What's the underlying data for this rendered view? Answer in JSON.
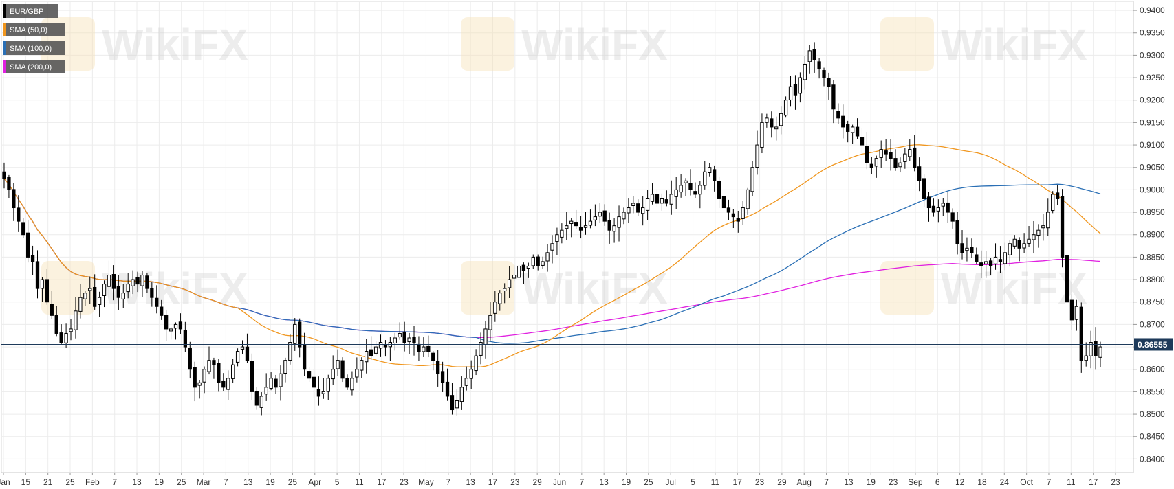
{
  "watermark": "WikiFX",
  "legend": [
    {
      "label": "EUR/GBP",
      "color": "#000000"
    },
    {
      "label": "SMA (50,0)",
      "color": "#f0961e"
    },
    {
      "label": "SMA (100,0)",
      "color": "#2a6fb5"
    },
    {
      "label": "SMA (200,0)",
      "color": "#e020e0"
    }
  ],
  "current_price_label": "0.86555",
  "chart_data": {
    "type": "candlestick",
    "title": "",
    "xlabel": "",
    "ylabel": "",
    "ylim": [
      0.837,
      0.942
    ],
    "grid": true,
    "legend_position": "top-left",
    "current_price": 0.86555,
    "y_ticks": [
      0.84,
      0.845,
      0.85,
      0.855,
      0.86,
      0.865,
      0.87,
      0.875,
      0.88,
      0.885,
      0.89,
      0.895,
      0.9,
      0.905,
      0.91,
      0.915,
      0.92,
      0.925,
      0.93,
      0.935,
      0.94
    ],
    "y_tick_labels": [
      "0.8400",
      "0.8450",
      "0.8500",
      "0.8550",
      "0.8600",
      "0.8650",
      "0.8700",
      "0.8750",
      "0.8800",
      "0.8850",
      "0.8900",
      "0.8950",
      "0.9000",
      "0.9050",
      "0.9100",
      "0.9150",
      "0.9200",
      "0.9250",
      "0.9300",
      "0.9350",
      "0.9400"
    ],
    "x_tick_labels": [
      "Jan",
      "15",
      "21",
      "25",
      "Feb",
      "7",
      "13",
      "19",
      "25",
      "Mar",
      "7",
      "13",
      "19",
      "25",
      "Apr",
      "5",
      "11",
      "17",
      "23",
      "May",
      "7",
      "13",
      "17",
      "23",
      "29",
      "Jun",
      "7",
      "13",
      "19",
      "25",
      "Jul",
      "5",
      "11",
      "17",
      "23",
      "29",
      "Aug",
      "7",
      "13",
      "19",
      "23",
      "Sep",
      "6",
      "12",
      "18",
      "24",
      "Oct",
      "7",
      "11",
      "17",
      "23"
    ],
    "closes": [
      0.9025,
      0.9,
      0.896,
      0.893,
      0.89,
      0.885,
      0.884,
      0.878,
      0.88,
      0.875,
      0.872,
      0.868,
      0.866,
      0.868,
      0.869,
      0.873,
      0.876,
      0.877,
      0.878,
      0.874,
      0.876,
      0.879,
      0.881,
      0.878,
      0.876,
      0.877,
      0.879,
      0.88,
      0.879,
      0.881,
      0.878,
      0.876,
      0.874,
      0.872,
      0.869,
      0.869,
      0.87,
      0.869,
      0.865,
      0.86,
      0.856,
      0.857,
      0.86,
      0.862,
      0.861,
      0.857,
      0.856,
      0.858,
      0.861,
      0.864,
      0.865,
      0.862,
      0.855,
      0.852,
      0.854,
      0.856,
      0.858,
      0.856,
      0.859,
      0.862,
      0.866,
      0.87,
      0.865,
      0.86,
      0.858,
      0.856,
      0.854,
      0.855,
      0.858,
      0.86,
      0.862,
      0.858,
      0.856,
      0.858,
      0.86,
      0.862,
      0.864,
      0.863,
      0.865,
      0.866,
      0.865,
      0.866,
      0.867,
      0.868,
      0.866,
      0.867,
      0.866,
      0.864,
      0.865,
      0.864,
      0.862,
      0.859,
      0.857,
      0.854,
      0.851,
      0.853,
      0.856,
      0.858,
      0.86,
      0.863,
      0.866,
      0.869,
      0.872,
      0.875,
      0.877,
      0.878,
      0.88,
      0.881,
      0.883,
      0.882,
      0.883,
      0.885,
      0.883,
      0.884,
      0.886,
      0.888,
      0.89,
      0.891,
      0.892,
      0.893,
      0.892,
      0.891,
      0.892,
      0.893,
      0.894,
      0.895,
      0.893,
      0.891,
      0.892,
      0.894,
      0.895,
      0.896,
      0.897,
      0.895,
      0.896,
      0.898,
      0.899,
      0.897,
      0.898,
      0.897,
      0.899,
      0.9,
      0.901,
      0.902,
      0.9,
      0.899,
      0.901,
      0.904,
      0.905,
      0.902,
      0.898,
      0.896,
      0.895,
      0.894,
      0.893,
      0.896,
      0.9,
      0.905,
      0.91,
      0.915,
      0.916,
      0.914,
      0.914,
      0.917,
      0.92,
      0.923,
      0.921,
      0.925,
      0.928,
      0.931,
      0.929,
      0.927,
      0.925,
      0.923,
      0.918,
      0.916,
      0.914,
      0.913,
      0.914,
      0.912,
      0.91,
      0.906,
      0.905,
      0.907,
      0.909,
      0.908,
      0.907,
      0.905,
      0.906,
      0.908,
      0.909,
      0.905,
      0.902,
      0.898,
      0.896,
      0.895,
      0.896,
      0.897,
      0.895,
      0.893,
      0.888,
      0.886,
      0.887,
      0.886,
      0.884,
      0.883,
      0.884,
      0.883,
      0.885,
      0.884,
      0.886,
      0.888,
      0.889,
      0.887,
      0.888,
      0.889,
      0.89,
      0.891,
      0.892,
      0.895,
      0.899,
      0.898,
      0.885,
      0.875,
      0.871,
      0.874,
      0.862,
      0.863,
      0.866,
      0.863,
      0.865
    ]
  }
}
